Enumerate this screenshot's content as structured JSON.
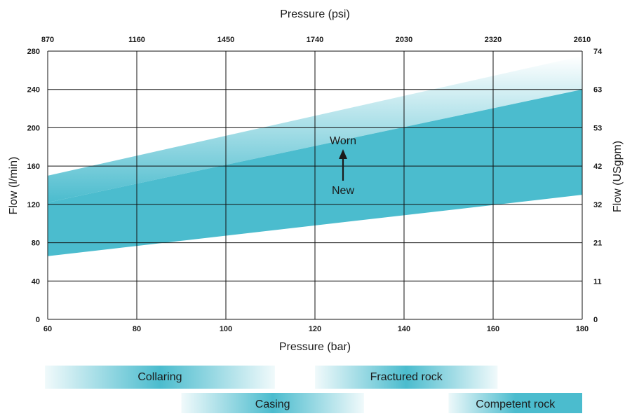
{
  "chart_data": {
    "type": "area",
    "title": "",
    "top_axis_label": "Pressure (psi)",
    "xlabel": "Pressure (bar)",
    "ylabel": "Flow (l/min)",
    "right_axis_label": "Flow (USgpm)",
    "xlim": [
      60,
      180
    ],
    "ylim": [
      0,
      280
    ],
    "x_ticks": [
      "60",
      "80",
      "100",
      "120",
      "140",
      "160",
      "180"
    ],
    "y_ticks": [
      "0",
      "40",
      "80",
      "120",
      "160",
      "200",
      "240",
      "280"
    ],
    "top_ticks": [
      "870",
      "1160",
      "1450",
      "1740",
      "2030",
      "2320",
      "2610"
    ],
    "right_ticks": [
      "0",
      "11",
      "21",
      "32",
      "42",
      "53",
      "63",
      "74"
    ],
    "grid": true,
    "band": {
      "x": [
        60,
        180
      ],
      "lower": [
        66,
        130
      ],
      "upper_solid": [
        122,
        240
      ],
      "upper_fade": [
        150,
        275
      ]
    },
    "annotations": {
      "top": "Worn",
      "bottom": "New"
    },
    "phases": [
      {
        "label": "Collaring",
        "range": [
          60,
          111
        ]
      },
      {
        "label": "Fractured rock",
        "range": [
          120,
          161
        ]
      },
      {
        "label": "Casing",
        "range": [
          90,
          131
        ]
      },
      {
        "label": "Competent rock",
        "range": [
          150,
          180
        ]
      }
    ],
    "colors": {
      "band": "#4bbcce",
      "grid": "#111111"
    }
  }
}
